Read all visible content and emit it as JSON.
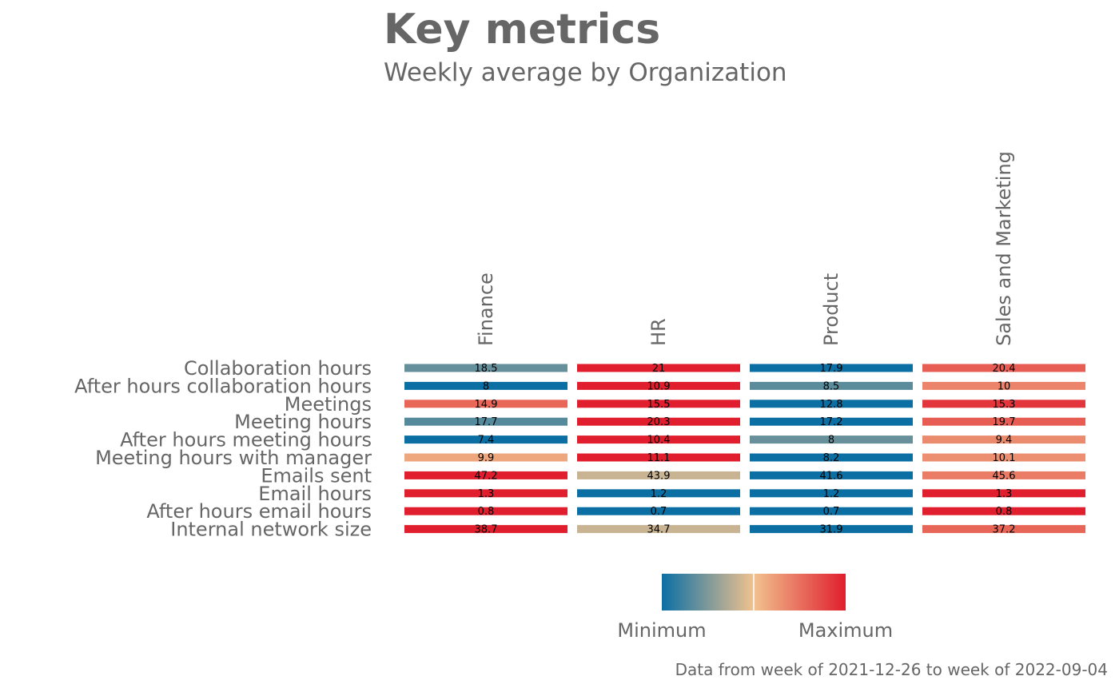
{
  "title": "Key metrics",
  "subtitle": "Weekly average by Organization",
  "caption": "Data from week of 2021-12-26 to week of 2022-09-04",
  "legend": {
    "min_label": "Minimum",
    "max_label": "Maximum"
  },
  "colors": {
    "low": "#0b6fa4",
    "mid": "#f1c28e",
    "high": "#e01e2e",
    "text": "#666666"
  },
  "chart_data": {
    "type": "heatmap",
    "title": "Key metrics",
    "subtitle": "Weekly average by Organization",
    "columns": [
      "Finance",
      "HR",
      "Product",
      "Sales and Marketing"
    ],
    "rows": [
      "Collaboration hours",
      "After hours collaboration hours",
      "Meetings",
      "Meeting hours",
      "After hours meeting hours",
      "Meeting hours with manager",
      "Emails sent",
      "Email hours",
      "After hours email hours",
      "Internal network size"
    ],
    "labels": [
      [
        "18.5",
        "21",
        "17.9",
        "20.4"
      ],
      [
        "8",
        "10.9",
        "8.5",
        "10"
      ],
      [
        "14.9",
        "15.5",
        "12.8",
        "15.3"
      ],
      [
        "17.7",
        "20.3",
        "17.2",
        "19.7"
      ],
      [
        "7.4",
        "10.4",
        "8",
        "9.4"
      ],
      [
        "9.9",
        "11.1",
        "8.2",
        "10.1"
      ],
      [
        "47.2",
        "43.9",
        "41.6",
        "45.6"
      ],
      [
        "1.3",
        "1.2",
        "1.2",
        "1.3"
      ],
      [
        "0.8",
        "0.7",
        "0.7",
        "0.8"
      ],
      [
        "38.7",
        "34.7",
        "31.9",
        "37.2"
      ]
    ],
    "values": [
      [
        18.5,
        21,
        17.9,
        20.4
      ],
      [
        8,
        10.9,
        8.5,
        10
      ],
      [
        14.9,
        15.5,
        12.8,
        15.3
      ],
      [
        17.7,
        20.3,
        17.2,
        19.7
      ],
      [
        7.4,
        10.4,
        8,
        9.4
      ],
      [
        9.9,
        11.1,
        8.2,
        10.1
      ],
      [
        47.2,
        43.9,
        41.6,
        45.6
      ],
      [
        1.3,
        1.2,
        1.2,
        1.3
      ],
      [
        0.8,
        0.7,
        0.7,
        0.8
      ],
      [
        38.7,
        34.7,
        31.9,
        37.2
      ]
    ],
    "color_scale": "row-wise minimum to maximum",
    "legend": "bottom"
  }
}
